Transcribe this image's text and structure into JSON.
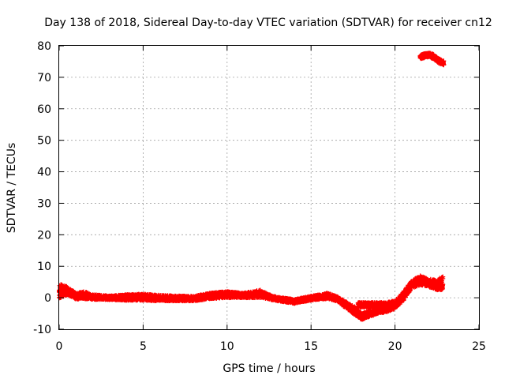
{
  "chart_data": {
    "type": "scatter",
    "title": "Day 138 of 2018, Sidereal Day-to-day VTEC variation (SDTVAR) for receiver cn12",
    "xlabel": "GPS time / hours",
    "ylabel": "SDTVAR / TECUs",
    "xlim": [
      0,
      25
    ],
    "ylim": [
      -10,
      80
    ],
    "xticks": [
      0,
      5,
      10,
      15,
      20,
      25
    ],
    "yticks": [
      -10,
      0,
      10,
      20,
      30,
      40,
      50,
      60,
      70,
      80
    ],
    "grid": true,
    "series": [
      {
        "name": "cn12 SDTVAR",
        "color": "#ff0000",
        "marker": "plus",
        "bands": [
          {
            "x": [
              0,
              0.5,
              1,
              1.5,
              2,
              3,
              4,
              5,
              6,
              7,
              8,
              9,
              10,
              11,
              12,
              12.5,
              13,
              14,
              15,
              15.5,
              16,
              16.5,
              17,
              17.5,
              18
            ],
            "lo": [
              -0.5,
              1,
              -0.5,
              -0.3,
              -0.5,
              -0.6,
              -0.8,
              -0.8,
              -1,
              -1,
              -1,
              -0.3,
              0,
              0,
              0,
              -0.5,
              -1,
              -1.8,
              -0.8,
              -0.5,
              -0.3,
              -1,
              -3,
              -5,
              -7
            ],
            "hi": [
              4.5,
              3.5,
              1.5,
              2,
              1,
              0.6,
              1,
              1.2,
              0.8,
              0.6,
              0.5,
              1.5,
              2,
              1.5,
              2.5,
              1,
              0.2,
              -0.5,
              0.5,
              1,
              1.5,
              0.5,
              -1,
              -2.5,
              -4.5
            ]
          },
          {
            "x": [
              18,
              18.5,
              19,
              19.5,
              20,
              20.5,
              21,
              21.5,
              22,
              22.5,
              22.85
            ],
            "lo": [
              -7,
              -6,
              -5,
              -4.5,
              -3.5,
              -1,
              3,
              4,
              3.5,
              2.5,
              2.5
            ],
            "hi": [
              -5,
              -4,
              -3,
              -2.5,
              -1,
              2,
              5.5,
              7,
              6,
              5.5,
              7
            ]
          },
          {
            "x": [
              17.8,
              18.5,
              19,
              19.5,
              19.9
            ],
            "lo": [
              -3,
              -3,
              -3,
              -3,
              -2.5
            ],
            "hi": [
              -1.5,
              -1.5,
              -1.5,
              -1.5,
              -1
            ]
          },
          {
            "x": [
              21.5,
              22,
              22.3,
              22.6,
              22.9
            ],
            "lo": [
              75.8,
              76.5,
              75.8,
              74.5,
              73.8
            ],
            "hi": [
              77.2,
              77.8,
              77.3,
              76,
              75.2
            ]
          }
        ]
      }
    ]
  }
}
